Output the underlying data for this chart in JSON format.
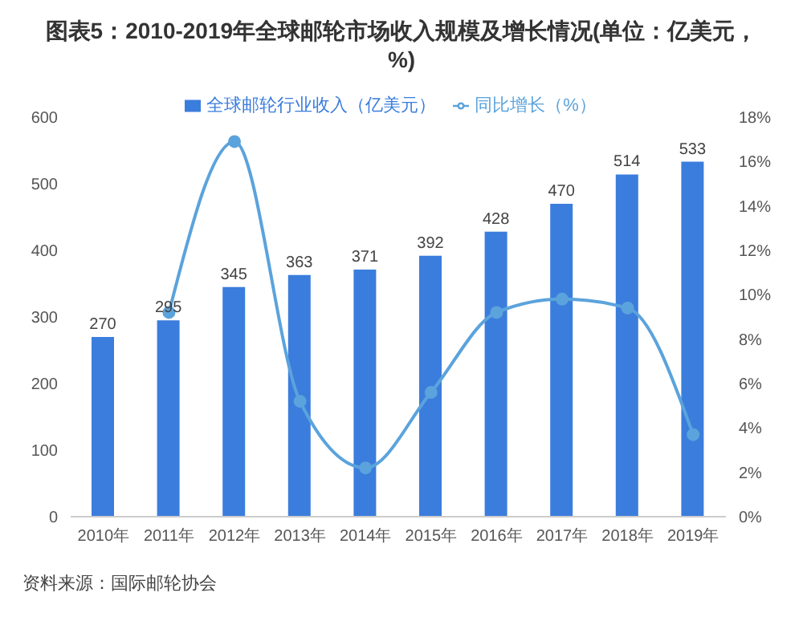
{
  "chart_data": {
    "type": "bar",
    "title": "图表5：2010-2019年全球邮轮市场收入规模及增长情况(单位：亿美元，%)",
    "categories": [
      "2010年",
      "2011年",
      "2012年",
      "2013年",
      "2014年",
      "2015年",
      "2016年",
      "2017年",
      "2018年",
      "2019年"
    ],
    "series": [
      {
        "name": "全球邮轮行业收入（亿美元）",
        "color": "#3b7ddd",
        "values": [
          270,
          295,
          345,
          363,
          371,
          392,
          428,
          470,
          514,
          533
        ],
        "data_labels": true
      },
      {
        "name": "同比增长（%）",
        "type": "line",
        "axis": "y2",
        "color": "#5ba3dc",
        "values": [
          null,
          9.2,
          16.9,
          5.2,
          2.2,
          5.6,
          9.2,
          9.8,
          9.4,
          3.7
        ],
        "marker": "circle"
      }
    ],
    "ylim": [
      0,
      600
    ],
    "yticks": [
      0,
      100,
      200,
      300,
      400,
      500,
      600
    ],
    "y2lim": [
      0,
      18
    ],
    "y2ticks": [
      {
        "value": 0,
        "label": "0%"
      },
      {
        "value": 2,
        "label": "2%"
      },
      {
        "value": 4,
        "label": "4%"
      },
      {
        "value": 6,
        "label": "6%"
      },
      {
        "value": 8,
        "label": "8%"
      },
      {
        "value": 10,
        "label": "10%"
      },
      {
        "value": 12,
        "label": "12%"
      },
      {
        "value": 14,
        "label": "14%"
      },
      {
        "value": 16,
        "label": "16%"
      },
      {
        "value": 18,
        "label": "18%"
      }
    ],
    "legend": "top",
    "grid": false,
    "annotations": [
      "资料来源：国际邮轮协会"
    ]
  }
}
